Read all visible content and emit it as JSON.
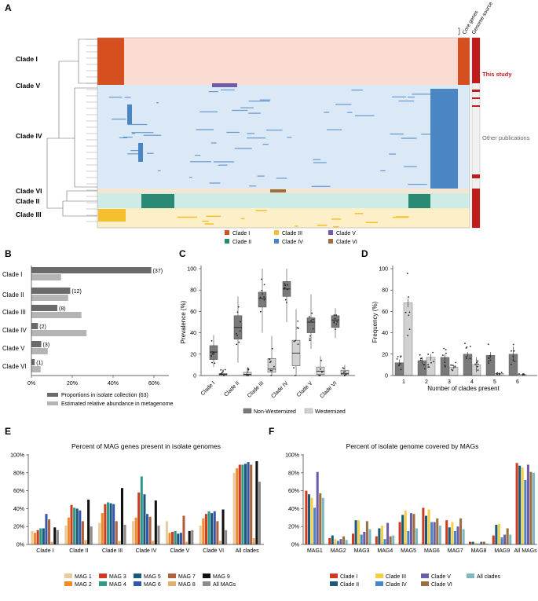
{
  "panels": {
    "a": "A",
    "b": "B",
    "c": "C",
    "d": "D",
    "e": "E",
    "f": "F"
  },
  "panelA": {
    "clade_rows": [
      "Clade I",
      "Clade V",
      "Clade IV",
      "Clade VI",
      "Clade II",
      "Clade III"
    ],
    "col_core": "Core genes",
    "col_source": "Genome source",
    "source_this": "This study",
    "source_other": "Other publications",
    "legend": [
      "Clade I",
      "Clade II",
      "Clade III",
      "Clade IV",
      "Clade V",
      "Clade VI"
    ],
    "colors": {
      "I": "#d64f1e",
      "II": "#2a8a74",
      "III": "#f5c030",
      "IV": "#4a86c4",
      "V": "#6e5ca8",
      "VI": "#9a7040",
      "src_red": "#c01c1c"
    }
  },
  "panelB": {
    "chart_data": {
      "type": "bar",
      "categories": [
        "Clade I",
        "Clade II",
        "Clade III",
        "Clade IV",
        "Clade V",
        "Clade VI"
      ],
      "series": [
        {
          "name": "Proportions in isolate collection (63)",
          "values": [
            58.7,
            19.0,
            12.7,
            3.2,
            4.8,
            1.6
          ],
          "color": "#6a6a6a"
        },
        {
          "name": "Estimated relative abundance in metagenome",
          "values": [
            14.5,
            18.0,
            24.5,
            27.0,
            8.0,
            4.5
          ],
          "color": "#b4b4b4"
        }
      ],
      "bar_labels": [
        "(37)",
        "(12)",
        "(8)",
        "(2)",
        "(3)",
        "(1)"
      ],
      "xticks": [
        "0%",
        "20%",
        "40%",
        "60%"
      ],
      "xlim": [
        0,
        65
      ]
    }
  },
  "panelC": {
    "chart_data": {
      "type": "box",
      "ylabel": "Prevalence (%)",
      "categories": [
        "Clade I",
        "Clade II",
        "Clade III",
        "Clade IV",
        "Clade V",
        "Clade VI"
      ],
      "yticks": [
        "0",
        "20",
        "40",
        "60",
        "80",
        "100"
      ],
      "ylim": [
        0,
        100
      ],
      "series": [
        {
          "name": "Non-Westernized",
          "color": "#7a7a7a",
          "boxes": [
            [
              8,
              15,
              22,
              28,
              38
            ],
            [
              12,
              34,
              45,
              56,
              74
            ],
            [
              40,
              64,
              72,
              78,
              100
            ],
            [
              50,
              74,
              81,
              88,
              100
            ],
            [
              25,
              40,
              50,
              54,
              76
            ],
            [
              35,
              45,
              52,
              56,
              63
            ]
          ]
        },
        {
          "name": "Westernized",
          "color": "#d2d2d2",
          "boxes": [
            [
              0,
              0,
              1,
              2,
              6
            ],
            [
              0,
              0,
              1,
              3,
              7
            ],
            [
              0,
              3,
              6,
              16,
              37
            ],
            [
              0,
              9,
              21,
              33,
              62
            ],
            [
              0,
              1,
              4,
              8,
              18
            ],
            [
              0,
              1,
              2,
              5,
              10
            ]
          ]
        }
      ],
      "legend": [
        "Non-Westernized",
        "Westernized"
      ]
    }
  },
  "panelD": {
    "chart_data": {
      "type": "bar",
      "xlabel": "Number of clades present",
      "ylabel": "Frequency (%)",
      "categories": [
        "1",
        "2",
        "3",
        "4",
        "5",
        "6"
      ],
      "yticks": [
        "0",
        "20",
        "40",
        "60",
        "80",
        "100"
      ],
      "ylim": [
        0,
        100
      ],
      "series": [
        {
          "name": "Non-Westernized",
          "color": "#7a7a7a",
          "values": [
            12,
            14,
            17,
            20,
            19,
            20
          ],
          "err": [
            3,
            3,
            3,
            2,
            3,
            7
          ]
        },
        {
          "name": "Westernized",
          "color": "#d2d2d2",
          "values": [
            68,
            17,
            8,
            10,
            2,
            1
          ],
          "err": [
            4,
            3,
            2,
            7,
            1,
            0
          ]
        }
      ]
    }
  },
  "panelE": {
    "chart_data": {
      "type": "bar",
      "title": "Percent of MAG genes present in isolate genomes",
      "categories": [
        "Clade I",
        "Clade II",
        "Clade III",
        "Clade IV",
        "Clade V",
        "Clade VI",
        "All clades"
      ],
      "yticks": [
        "0%",
        "20%",
        "40%",
        "60%",
        "80%",
        "100%"
      ],
      "ylim": [
        0,
        100
      ],
      "series": [
        {
          "name": "MAG 1",
          "color": "#e9c9a0",
          "values": [
            15,
            21,
            24,
            26,
            26,
            21,
            80
          ]
        },
        {
          "name": "MAG 2",
          "color": "#f08a24",
          "values": [
            13,
            30,
            35,
            30,
            13,
            29,
            85
          ]
        },
        {
          "name": "MAG 3",
          "color": "#cf3b20",
          "values": [
            16,
            44,
            45,
            58,
            14,
            34,
            89
          ]
        },
        {
          "name": "MAG 4",
          "color": "#2e9a8a",
          "values": [
            18,
            41,
            47,
            76,
            15,
            37,
            89
          ]
        },
        {
          "name": "MAG 5",
          "color": "#1a5a78",
          "values": [
            18,
            40,
            46,
            56,
            12,
            35,
            90
          ]
        },
        {
          "name": "MAG 6",
          "color": "#3358a8",
          "values": [
            34,
            38,
            45,
            34,
            13,
            37,
            92
          ]
        },
        {
          "name": "MAG 7",
          "color": "#b0603a",
          "values": [
            28,
            26,
            26,
            31,
            32,
            26,
            89
          ]
        },
        {
          "name": "MAG 8",
          "color": "#e0b070",
          "values": [
            3,
            5,
            4,
            4,
            3,
            4,
            7
          ]
        },
        {
          "name": "MAG 9",
          "color": "#111111",
          "values": [
            19,
            50,
            63,
            49,
            15,
            39,
            93
          ]
        },
        {
          "name": "All MAGs",
          "color": "#8c8c8c",
          "values": [
            16,
            20,
            22,
            21,
            16,
            16,
            70
          ]
        }
      ],
      "legend": [
        "MAG 1",
        "MAG 2",
        "MAG 3",
        "MAG 4",
        "MAG 5",
        "MAG 6",
        "MAG 7",
        "MAG 8",
        "MAG 9",
        "All MAGs"
      ]
    }
  },
  "panelF": {
    "chart_data": {
      "type": "bar",
      "title": "Percent of isolate genome covered by MAGs",
      "categories": [
        "MAG1",
        "MAG2",
        "MAG3",
        "MAG4",
        "MAG5",
        "MAG6",
        "MAG7",
        "MAG8",
        "MAG9",
        "All MAGs"
      ],
      "yticks": [
        "0%",
        "20%",
        "40%",
        "60%",
        "80%",
        "100%"
      ],
      "ylim": [
        0,
        100
      ],
      "series": [
        {
          "name": "Clade I",
          "color": "#cf3b20",
          "values": [
            60,
            7,
            12,
            9,
            25,
            41,
            27,
            3,
            10,
            91
          ]
        },
        {
          "name": "Clade II",
          "color": "#1a5a78",
          "values": [
            56,
            10,
            27,
            18,
            33,
            32,
            19,
            3,
            22,
            88
          ]
        },
        {
          "name": "Clade III",
          "color": "#f3d04a",
          "values": [
            52,
            6,
            27,
            21,
            38,
            39,
            25,
            2,
            23,
            86
          ]
        },
        {
          "name": "Clade IV",
          "color": "#4a86c4",
          "values": [
            41,
            4,
            11,
            6,
            15,
            25,
            15,
            1,
            8,
            72
          ]
        },
        {
          "name": "Clade V",
          "color": "#6e5ca8",
          "values": [
            81,
            6,
            14,
            24,
            35,
            25,
            20,
            3,
            11,
            89
          ]
        },
        {
          "name": "Clade VI",
          "color": "#9a7040",
          "values": [
            57,
            9,
            26,
            9,
            34,
            29,
            29,
            3,
            18,
            81
          ]
        },
        {
          "name": "All clades",
          "color": "#7fb8c0",
          "values": [
            52,
            5,
            17,
            10,
            18,
            21,
            17,
            1,
            11,
            80
          ]
        }
      ],
      "legend": [
        "Clade I",
        "Clade II",
        "Clade III",
        "Clade IV",
        "Clade V",
        "Clade VI",
        "All clades"
      ]
    }
  }
}
